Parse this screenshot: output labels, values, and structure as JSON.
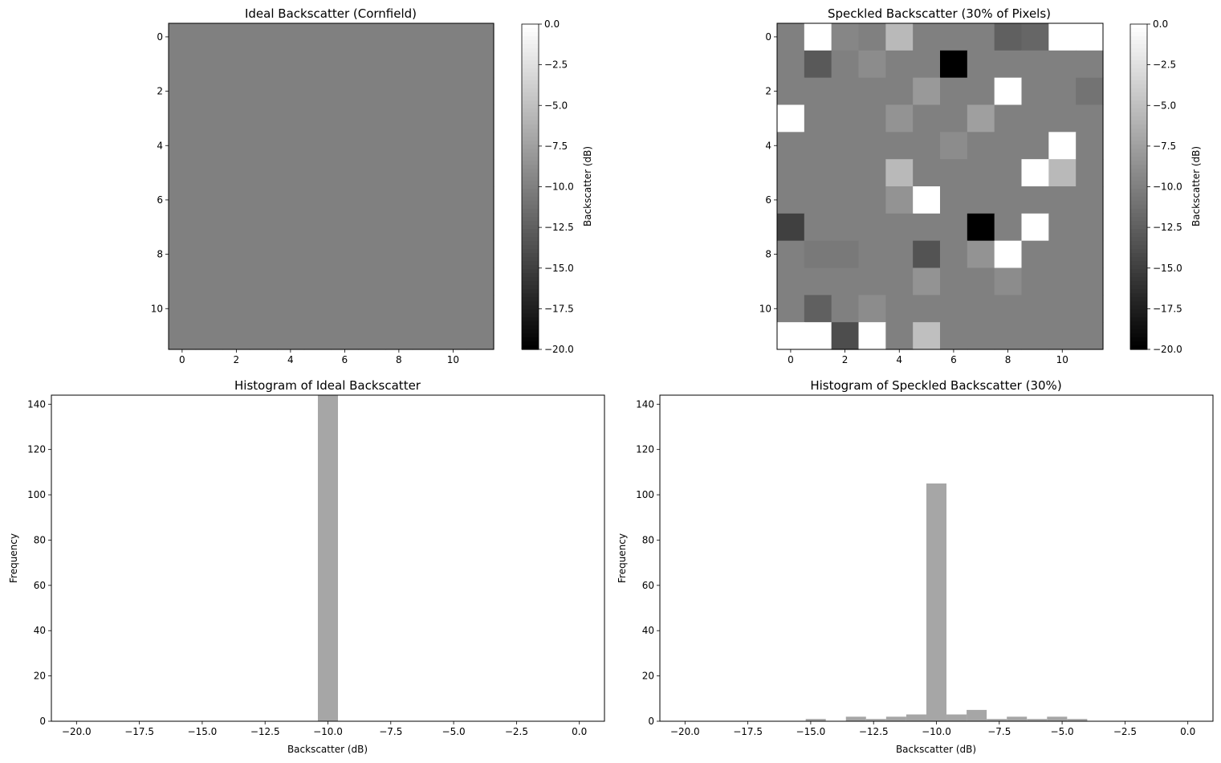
{
  "chart_data": [
    {
      "type": "heatmap",
      "title": "Ideal Backscatter (Cornfield)",
      "colorbar_label": "Backscatter (dB)",
      "colormap": "gray",
      "vmin": -20,
      "vmax": 0,
      "x_ticks": [
        "0",
        "2",
        "4",
        "6",
        "8",
        "10"
      ],
      "y_ticks": [
        "0",
        "2",
        "4",
        "6",
        "8",
        "10"
      ],
      "colorbar_ticks": [
        "0.0",
        "−2.5",
        "−5.0",
        "−7.5",
        "−10.0",
        "−12.5",
        "−15.0",
        "−17.5",
        "−20.0"
      ],
      "grid": [
        [
          -10,
          -10,
          -10,
          -10,
          -10,
          -10,
          -10,
          -10,
          -10,
          -10,
          -10,
          -10
        ],
        [
          -10,
          -10,
          -10,
          -10,
          -10,
          -10,
          -10,
          -10,
          -10,
          -10,
          -10,
          -10
        ],
        [
          -10,
          -10,
          -10,
          -10,
          -10,
          -10,
          -10,
          -10,
          -10,
          -10,
          -10,
          -10
        ],
        [
          -10,
          -10,
          -10,
          -10,
          -10,
          -10,
          -10,
          -10,
          -10,
          -10,
          -10,
          -10
        ],
        [
          -10,
          -10,
          -10,
          -10,
          -10,
          -10,
          -10,
          -10,
          -10,
          -10,
          -10,
          -10
        ],
        [
          -10,
          -10,
          -10,
          -10,
          -10,
          -10,
          -10,
          -10,
          -10,
          -10,
          -10,
          -10
        ],
        [
          -10,
          -10,
          -10,
          -10,
          -10,
          -10,
          -10,
          -10,
          -10,
          -10,
          -10,
          -10
        ],
        [
          -10,
          -10,
          -10,
          -10,
          -10,
          -10,
          -10,
          -10,
          -10,
          -10,
          -10,
          -10
        ],
        [
          -10,
          -10,
          -10,
          -10,
          -10,
          -10,
          -10,
          -10,
          -10,
          -10,
          -10,
          -10
        ],
        [
          -10,
          -10,
          -10,
          -10,
          -10,
          -10,
          -10,
          -10,
          -10,
          -10,
          -10,
          -10
        ],
        [
          -10,
          -10,
          -10,
          -10,
          -10,
          -10,
          -10,
          -10,
          -10,
          -10,
          -10,
          -10
        ],
        [
          -10,
          -10,
          -10,
          -10,
          -10,
          -10,
          -10,
          -10,
          -10,
          -10,
          -10,
          -10
        ]
      ]
    },
    {
      "type": "heatmap",
      "title": "Speckled Backscatter (30% of Pixels)",
      "colorbar_label": "Backscatter (dB)",
      "colormap": "gray",
      "vmin": -20,
      "vmax": 0,
      "x_ticks": [
        "0",
        "2",
        "4",
        "6",
        "8",
        "10"
      ],
      "y_ticks": [
        "0",
        "2",
        "4",
        "6",
        "8",
        "10"
      ],
      "colorbar_ticks": [
        "0.0",
        "−2.5",
        "−5.0",
        "−7.5",
        "−10.0",
        "−12.5",
        "−15.0",
        "−17.5",
        "−20.0"
      ],
      "grid": [
        [
          -10,
          0,
          -9.5,
          -10,
          -5.5,
          -10,
          -10,
          -10,
          -12.5,
          -12,
          0,
          0
        ],
        [
          -10,
          -13,
          -10,
          -9,
          -10,
          -10,
          -20,
          -10,
          -10,
          -10,
          -10,
          -10
        ],
        [
          -10,
          -10,
          -10,
          -10,
          -10,
          -8,
          -10,
          -10,
          0,
          -10,
          -10,
          -11
        ],
        [
          0,
          -10,
          -10,
          -10,
          -8.5,
          -10,
          -10,
          -7.5,
          -10,
          -10,
          -10,
          -10
        ],
        [
          -10,
          -10,
          -10,
          -10,
          -10,
          -10,
          -9,
          -10,
          -10,
          -10,
          0,
          -10
        ],
        [
          -10,
          -10,
          -10,
          -10,
          -5.5,
          -10,
          -10,
          -10,
          -10,
          0,
          -5.5,
          -10
        ],
        [
          -10,
          -10,
          -10,
          -10,
          -8.5,
          0,
          -10,
          -10,
          -10,
          -10,
          -10,
          -10
        ],
        [
          -15,
          -10,
          -10,
          -10,
          -10,
          -10,
          -10,
          -20,
          -10,
          0,
          -10,
          -10
        ],
        [
          -10,
          -10.5,
          -10.5,
          -10,
          -10,
          -13.5,
          -10,
          -8.5,
          0,
          -10,
          -10,
          -10
        ],
        [
          -10,
          -10,
          -10,
          -10,
          -10,
          -8.5,
          -10,
          -10,
          -9,
          -10,
          -10,
          -10
        ],
        [
          -10,
          -12.5,
          -10,
          -9,
          -10,
          -10,
          -10,
          -10,
          -10,
          -10,
          -10,
          -10
        ],
        [
          0,
          0,
          -14,
          0,
          -10,
          -5,
          -10,
          -10,
          -10,
          -10,
          -10,
          -10
        ]
      ]
    },
    {
      "type": "bar",
      "title": "Histogram of Ideal Backscatter",
      "xlabel": "Backscatter (dB)",
      "ylabel": "Frequency",
      "xlim": [
        -21,
        1
      ],
      "ylim": [
        0,
        144
      ],
      "x_ticks": [
        -20,
        -17.5,
        -15,
        -12.5,
        -10,
        -7.5,
        -5,
        -2.5,
        0
      ],
      "x_tick_labels": [
        "−20.0",
        "−17.5",
        "−15.0",
        "−12.5",
        "−10.0",
        "−7.5",
        "−5.0",
        "−2.5",
        "0.0"
      ],
      "y_ticks": [
        0,
        20,
        40,
        60,
        80,
        100,
        120,
        140
      ],
      "bar_color": "#a6a6a6",
      "bins": [
        {
          "x0": -10.4,
          "x1": -9.6,
          "count": 144
        }
      ]
    },
    {
      "type": "bar",
      "title": "Histogram of Speckled Backscatter (30%)",
      "xlabel": "Backscatter (dB)",
      "ylabel": "Frequency",
      "xlim": [
        -21,
        1
      ],
      "ylim": [
        0,
        144
      ],
      "x_ticks": [
        -20,
        -17.5,
        -15,
        -12.5,
        -10,
        -7.5,
        -5,
        -2.5,
        0
      ],
      "x_tick_labels": [
        "−20.0",
        "−17.5",
        "−15.0",
        "−12.5",
        "−10.0",
        "−7.5",
        "−5.0",
        "−2.5",
        "0.0"
      ],
      "y_ticks": [
        0,
        20,
        40,
        60,
        80,
        100,
        120,
        140
      ],
      "bar_color": "#a6a6a6",
      "bins": [
        {
          "x0": -15.2,
          "x1": -14.4,
          "count": 1
        },
        {
          "x0": -13.6,
          "x1": -12.8,
          "count": 2
        },
        {
          "x0": -12.8,
          "x1": -12.0,
          "count": 1
        },
        {
          "x0": -12.0,
          "x1": -11.2,
          "count": 2
        },
        {
          "x0": -11.2,
          "x1": -10.4,
          "count": 3
        },
        {
          "x0": -10.4,
          "x1": -9.6,
          "count": 105
        },
        {
          "x0": -9.6,
          "x1": -8.8,
          "count": 3
        },
        {
          "x0": -8.8,
          "x1": -8.0,
          "count": 5
        },
        {
          "x0": -8.0,
          "x1": -7.2,
          "count": 1
        },
        {
          "x0": -7.2,
          "x1": -6.4,
          "count": 2
        },
        {
          "x0": -6.4,
          "x1": -5.6,
          "count": 1
        },
        {
          "x0": -5.6,
          "x1": -4.8,
          "count": 2
        },
        {
          "x0": -4.8,
          "x1": -4.0,
          "count": 1
        }
      ]
    }
  ]
}
